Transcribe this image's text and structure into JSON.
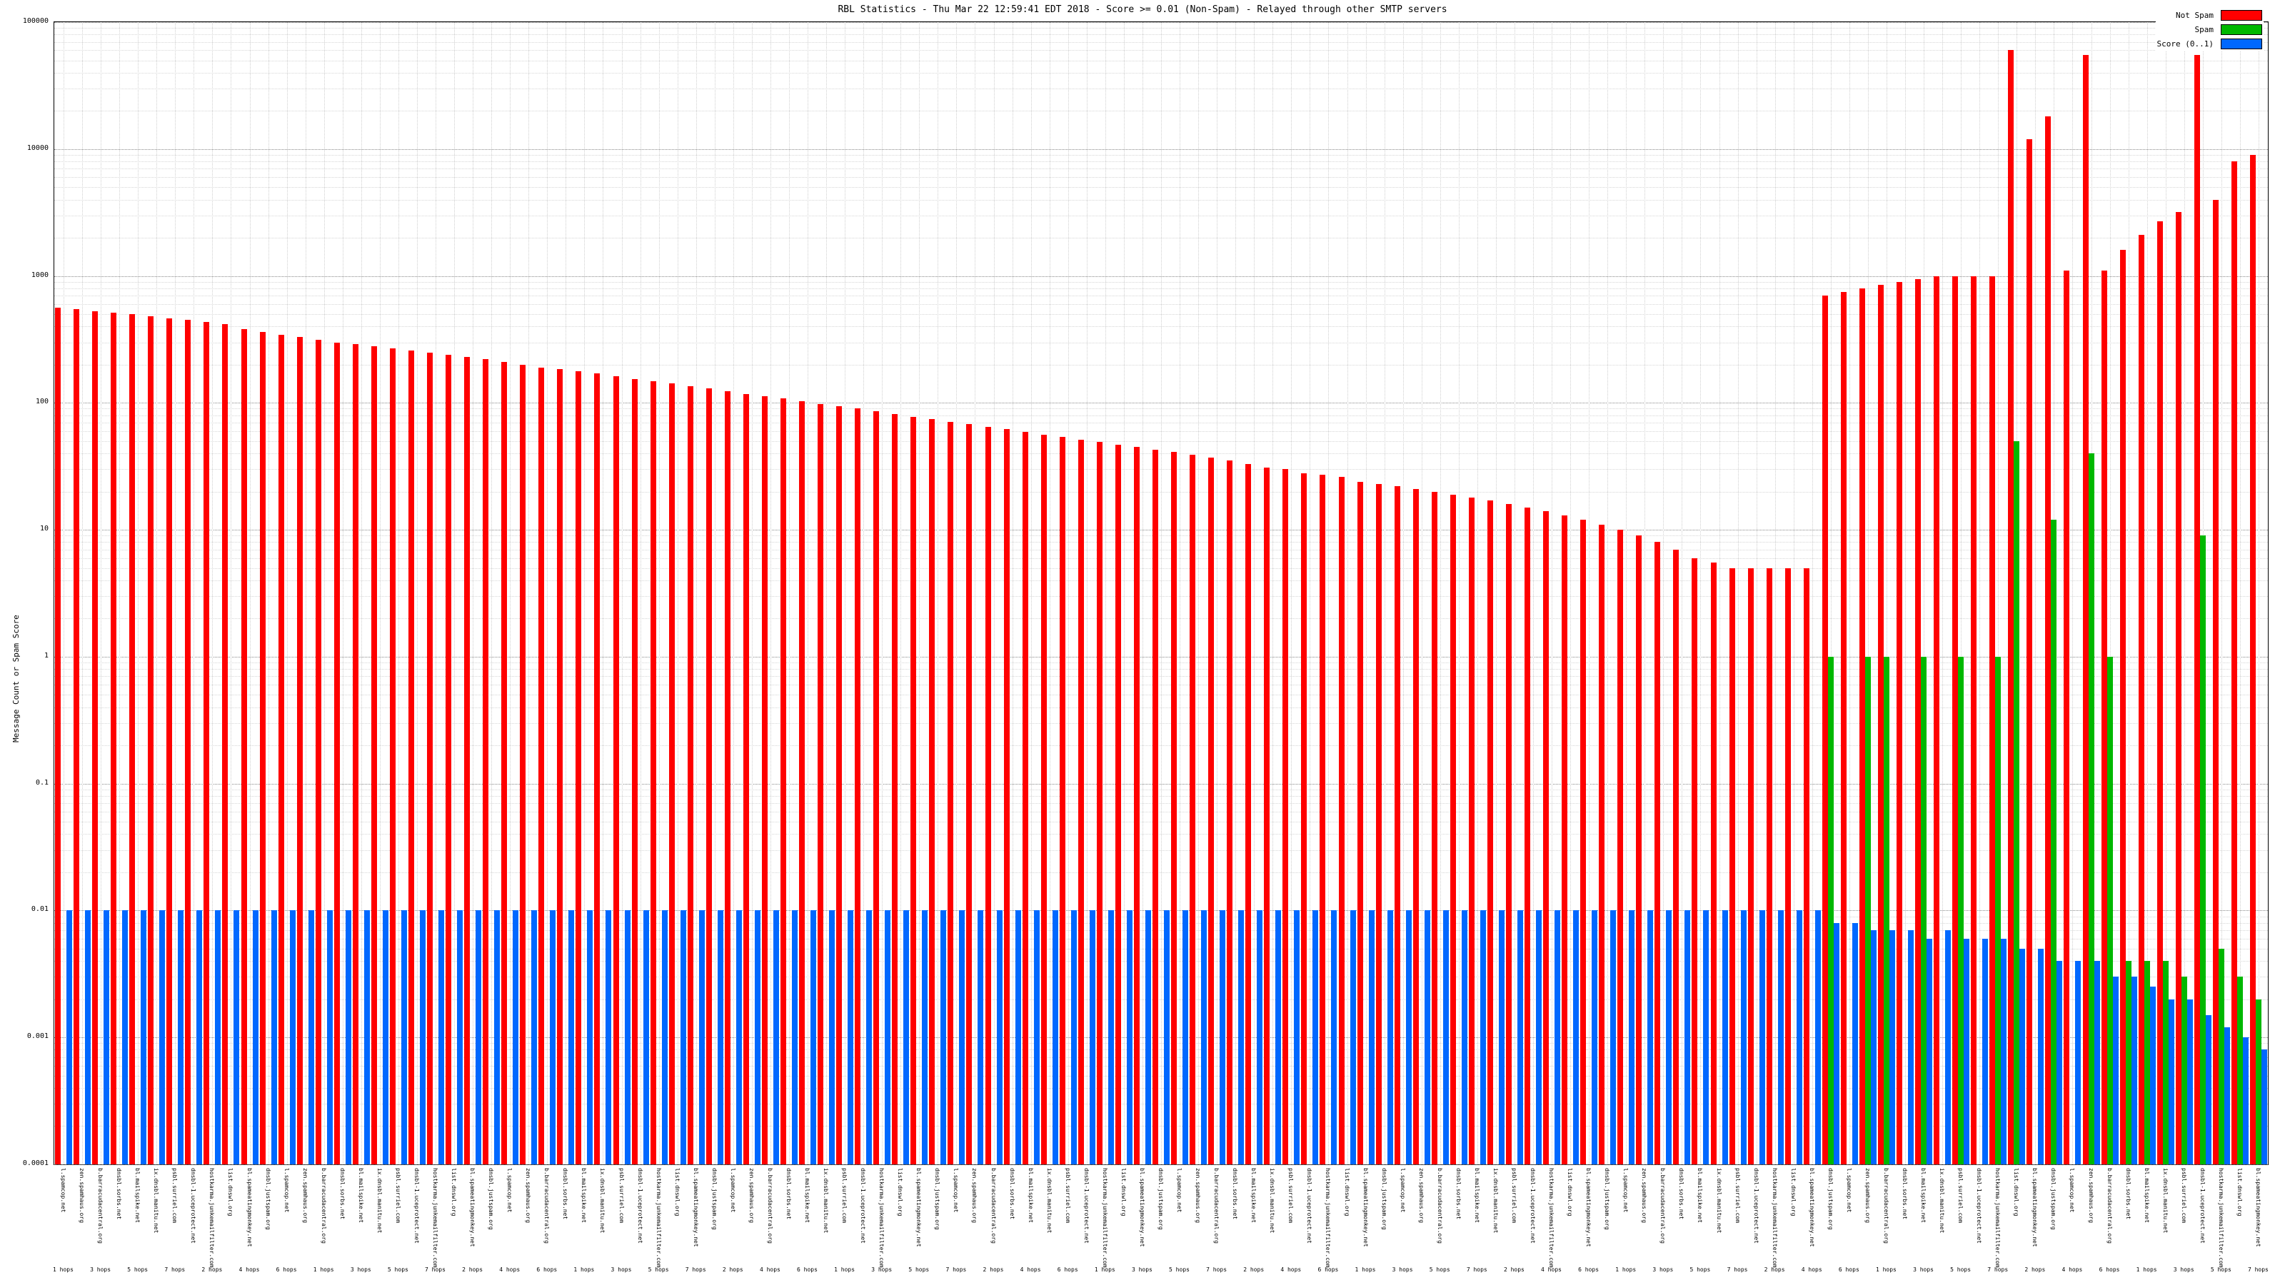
{
  "chart_data": {
    "type": "bar",
    "title": "RBL Statistics - Thu Mar 22 12:59:41 EDT 2018 - Score >= 0.01 (Non-Spam) - Relayed through other SMTP servers",
    "xlabel": "",
    "ylabel": "Message Count or Spam Score",
    "y_scale": "log",
    "ylim": [
      0.0001,
      100000
    ],
    "y_ticks": [
      "100000",
      "10000",
      "1000",
      "100",
      "10",
      "1",
      "0.1",
      "0.01",
      "0.001",
      "0.0001"
    ],
    "grid": true,
    "legend_position": "top-right",
    "categories": [
      "l.spamcop.net 1 hops",
      "zen.spamhaus.org 2 hops",
      "b.barracudacentral.org 3 hops",
      "dnsbl.sorbs.net 4 hops",
      "bl.mailspike.net 5 hops",
      "ix.dnsbl.manitu.net 6 hops",
      "psbl.surriel.com 7 hops",
      "dnsbl-1.uceprotect.net 1 hops",
      "hostkarma.junkemailfilter.com 2 hops",
      "list.dnswl.org 3 hops",
      "bl.spameatingmonkey.net 4 hops",
      "dnsbl.justspam.org 5 hops",
      "l.spamcop.net 6 hops",
      "zen.spamhaus.org 7 hops",
      "b.barracudacentral.org 1 hops",
      "dnsbl.sorbs.net 2 hops",
      "bl.mailspike.net 3 hops",
      "ix.dnsbl.manitu.net 4 hops",
      "psbl.surriel.com 5 hops",
      "dnsbl-1.uceprotect.net 6 hops",
      "hostkarma.junkemailfilter.com 7 hops",
      "list.dnswl.org 1 hops",
      "bl.spameatingmonkey.net 2 hops",
      "dnsbl.justspam.org 3 hops",
      "l.spamcop.net 4 hops",
      "zen.spamhaus.org 5 hops",
      "b.barracudacentral.org 6 hops",
      "dnsbl.sorbs.net 7 hops",
      "bl.mailspike.net 1 hops",
      "ix.dnsbl.manitu.net 2 hops",
      "psbl.surriel.com 3 hops",
      "dnsbl-1.uceprotect.net 4 hops",
      "hostkarma.junkemailfilter.com 5 hops",
      "list.dnswl.org 6 hops",
      "bl.spameatingmonkey.net 7 hops",
      "dnsbl.justspam.org 1 hops",
      "l.spamcop.net 2 hops",
      "zen.spamhaus.org 3 hops",
      "b.barracudacentral.org 4 hops",
      "dnsbl.sorbs.net 5 hops",
      "bl.mailspike.net 6 hops",
      "ix.dnsbl.manitu.net 7 hops",
      "psbl.surriel.com 1 hops",
      "dnsbl-1.uceprotect.net 2 hops",
      "hostkarma.junkemailfilter.com 3 hops",
      "list.dnswl.org 4 hops",
      "bl.spameatingmonkey.net 5 hops",
      "dnsbl.justspam.org 6 hops",
      "l.spamcop.net 7 hops",
      "zen.spamhaus.org 1 hops",
      "b.barracudacentral.org 2 hops",
      "dnsbl.sorbs.net 3 hops",
      "bl.mailspike.net 4 hops",
      "ix.dnsbl.manitu.net 5 hops",
      "psbl.surriel.com 6 hops",
      "dnsbl-1.uceprotect.net 7 hops",
      "hostkarma.junkemailfilter.com 1 hops",
      "list.dnswl.org 2 hops",
      "bl.spameatingmonkey.net 3 hops",
      "dnsbl.justspam.org 4 hops",
      "l.spamcop.net 5 hops",
      "zen.spamhaus.org 6 hops",
      "b.barracudacentral.org 7 hops",
      "dnsbl.sorbs.net 1 hops",
      "bl.mailspike.net 2 hops",
      "ix.dnsbl.manitu.net 3 hops",
      "psbl.surriel.com 4 hops",
      "dnsbl-1.uceprotect.net 5 hops",
      "hostkarma.junkemailfilter.com 6 hops",
      "list.dnswl.org 7 hops",
      "bl.spameatingmonkey.net 1 hops",
      "dnsbl.justspam.org 2 hops",
      "l.spamcop.net 3 hops",
      "zen.spamhaus.org 4 hops",
      "b.barracudacentral.org 5 hops",
      "dnsbl.sorbs.net 6 hops",
      "bl.mailspike.net 7 hops",
      "ix.dnsbl.manitu.net 1 hops",
      "psbl.surriel.com 2 hops",
      "dnsbl-1.uceprotect.net 3 hops",
      "hostkarma.junkemailfilter.com 4 hops",
      "list.dnswl.org 5 hops",
      "bl.spameatingmonkey.net 6 hops",
      "dnsbl.justspam.org 7 hops",
      "l.spamcop.net 1 hops",
      "zen.spamhaus.org 2 hops",
      "b.barracudacentral.org 3 hops",
      "dnsbl.sorbs.net 4 hops",
      "bl.mailspike.net 5 hops",
      "ix.dnsbl.manitu.net 6 hops",
      "psbl.surriel.com 7 hops",
      "dnsbl-1.uceprotect.net 1 hops",
      "hostkarma.junkemailfilter.com 2 hops",
      "list.dnswl.org 3 hops",
      "bl.spameatingmonkey.net 4 hops",
      "dnsbl.justspam.org 5 hops",
      "l.spamcop.net 6 hops",
      "zen.spamhaus.org 7 hops",
      "b.barracudacentral.org 1 hops",
      "dnsbl.sorbs.net 2 hops",
      "bl.mailspike.net 3 hops",
      "ix.dnsbl.manitu.net 4 hops",
      "psbl.surriel.com 5 hops",
      "dnsbl-1.uceprotect.net 6 hops",
      "hostkarma.junkemailfilter.com 7 hops",
      "list.dnswl.org 1 hops",
      "bl.spameatingmonkey.net 2 hops",
      "dnsbl.justspam.org 3 hops",
      "l.spamcop.net 4 hops",
      "zen.spamhaus.org 5 hops",
      "b.barracudacentral.org 6 hops",
      "dnsbl.sorbs.net 7 hops",
      "bl.mailspike.net 1 hops",
      "ix.dnsbl.manitu.net 2 hops",
      "psbl.surriel.com 3 hops",
      "dnsbl-1.uceprotect.net 4 hops",
      "hostkarma.junkemailfilter.com 5 hops",
      "list.dnswl.org 6 hops",
      "bl.spameatingmonkey.net 7 hops"
    ],
    "series": [
      {
        "name": "Not Spam",
        "color": "#ff0000",
        "values": [
          560,
          545,
          530,
          515,
          500,
          480,
          465,
          450,
          435,
          420,
          380,
          360,
          345,
          330,
          315,
          300,
          290,
          280,
          270,
          260,
          250,
          240,
          230,
          220,
          210,
          200,
          190,
          185,
          178,
          170,
          162,
          155,
          148,
          142,
          135,
          130,
          124,
          118,
          113,
          108,
          103,
          98,
          94,
          90,
          86,
          82,
          78,
          75,
          71,
          68,
          65,
          62,
          59,
          56,
          54,
          51,
          49,
          47,
          45,
          43,
          41,
          39,
          37,
          35,
          33,
          31,
          30,
          28,
          27,
          26,
          24,
          23,
          22,
          21,
          20,
          19,
          18,
          17,
          16,
          15,
          14,
          13,
          12,
          11,
          10,
          9,
          8,
          7,
          6,
          5.5,
          5,
          5,
          5,
          5,
          5,
          700,
          750,
          800,
          850,
          900,
          950,
          1000,
          1000,
          1000,
          1000,
          60000,
          12000,
          18000,
          1100,
          55000,
          1100,
          1600,
          2100,
          2700,
          3200,
          55000,
          4000,
          8000,
          9000
        ]
      },
      {
        "name": "Spam",
        "color": "#00b800",
        "values": [
          0,
          0,
          0,
          0,
          0,
          0,
          0,
          0,
          0,
          0,
          0,
          0,
          0,
          0,
          0,
          0,
          0,
          0,
          0,
          0,
          0,
          0,
          0,
          0,
          0,
          0,
          0,
          0,
          0,
          0,
          0,
          0,
          0,
          0,
          0,
          0,
          0,
          0,
          0,
          0,
          0,
          0,
          0,
          0,
          0,
          0,
          0,
          0,
          0,
          0,
          0,
          0,
          0,
          0,
          0,
          0,
          0,
          0,
          0,
          0,
          0,
          0,
          0,
          0,
          0,
          0,
          0,
          0,
          0,
          0,
          0,
          0,
          0,
          0,
          0,
          0,
          0,
          0,
          0,
          0,
          0,
          0,
          0,
          0,
          0,
          0,
          0,
          0,
          0,
          0,
          0,
          0,
          0,
          0,
          0,
          1,
          0,
          1,
          1,
          0,
          1,
          0,
          1,
          0,
          1,
          50,
          0,
          12,
          0,
          40,
          1,
          0.004,
          0.004,
          0.004,
          0.003,
          9,
          0.005,
          0.003,
          0.002
        ]
      },
      {
        "name": "Score (0..1)",
        "color": "#0068ff",
        "values": [
          0.01,
          0.01,
          0.01,
          0.01,
          0.01,
          0.01,
          0.01,
          0.01,
          0.01,
          0.01,
          0.01,
          0.01,
          0.01,
          0.01,
          0.01,
          0.01,
          0.01,
          0.01,
          0.01,
          0.01,
          0.01,
          0.01,
          0.01,
          0.01,
          0.01,
          0.01,
          0.01,
          0.01,
          0.01,
          0.01,
          0.01,
          0.01,
          0.01,
          0.01,
          0.01,
          0.01,
          0.01,
          0.01,
          0.01,
          0.01,
          0.01,
          0.01,
          0.01,
          0.01,
          0.01,
          0.01,
          0.01,
          0.01,
          0.01,
          0.01,
          0.01,
          0.01,
          0.01,
          0.01,
          0.01,
          0.01,
          0.01,
          0.01,
          0.01,
          0.01,
          0.01,
          0.01,
          0.01,
          0.01,
          0.01,
          0.01,
          0.01,
          0.01,
          0.01,
          0.01,
          0.01,
          0.01,
          0.01,
          0.01,
          0.01,
          0.01,
          0.01,
          0.01,
          0.01,
          0.01,
          0.01,
          0.01,
          0.01,
          0.01,
          0.01,
          0.01,
          0.01,
          0.01,
          0.01,
          0.01,
          0.01,
          0.01,
          0.01,
          0.01,
          0.01,
          0.008,
          0.008,
          0.007,
          0.007,
          0.007,
          0.006,
          0.007,
          0.006,
          0.006,
          0.006,
          0.005,
          0.005,
          0.004,
          0.004,
          0.004,
          0.003,
          0.003,
          0.0025,
          0.002,
          0.002,
          0.0015,
          0.0012,
          0.001,
          0.0008
        ]
      }
    ]
  }
}
